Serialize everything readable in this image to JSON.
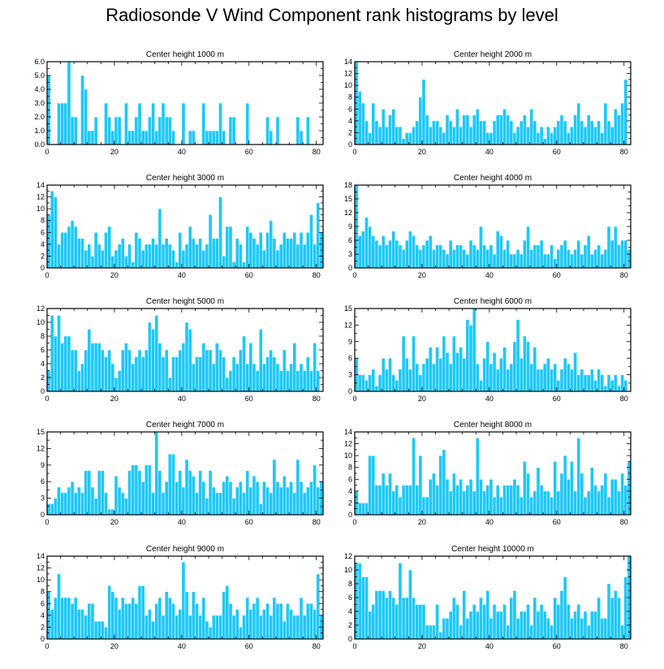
{
  "title": "Radiosonde V Wind Component rank histograms by level",
  "colors": {
    "bar": "#1ec8f7",
    "bar_stroke": "#ffffff",
    "axis": "#000000"
  },
  "chart_data": [
    {
      "type": "bar",
      "title": "Center height 1000 m",
      "xlabel": "",
      "ylabel": "",
      "xlim": [
        0,
        82
      ],
      "ylim": [
        0,
        6
      ],
      "xticks": [
        0,
        20,
        40,
        60,
        80
      ],
      "yticks": [
        0,
        1,
        2,
        3,
        4,
        5,
        6
      ],
      "ytick_labels": [
        "0.0",
        "1.0",
        "2.0",
        "3.0",
        "4.0",
        "5.0",
        "6.0"
      ],
      "values": [
        5,
        0,
        0,
        3,
        3,
        3,
        6,
        2,
        2,
        0,
        5,
        4,
        1,
        1,
        2,
        0,
        0,
        3,
        2,
        1,
        2,
        2,
        0,
        3,
        1,
        1,
        2,
        3,
        1,
        1,
        2,
        3,
        1,
        2,
        3,
        2,
        2,
        1,
        0,
        0,
        3,
        0,
        1,
        1,
        0,
        0,
        3,
        1,
        1,
        1,
        1,
        3,
        1,
        0,
        2,
        2,
        0,
        0,
        0,
        3,
        0,
        0,
        0,
        0,
        0,
        2,
        1,
        0,
        2,
        0,
        0,
        0,
        0,
        0,
        2,
        1,
        0,
        2,
        0,
        0,
        0,
        0
      ]
    },
    {
      "type": "bar",
      "title": "Center height 2000 m",
      "xlabel": "",
      "ylabel": "",
      "xlim": [
        0,
        82
      ],
      "ylim": [
        0,
        14
      ],
      "xticks": [
        0,
        20,
        40,
        60,
        80
      ],
      "yticks": [
        0,
        2,
        4,
        6,
        8,
        10,
        12,
        14
      ],
      "ytick_labels": [
        "0",
        "2",
        "4",
        "6",
        "8",
        "10",
        "12",
        "14"
      ],
      "values": [
        14,
        9,
        7,
        4,
        2,
        7,
        4,
        3,
        6,
        3,
        5,
        6,
        3,
        3,
        1,
        2,
        2,
        3,
        4,
        8,
        11,
        5,
        3,
        4,
        4,
        3,
        2,
        5,
        4,
        3,
        6,
        3,
        5,
        5,
        3,
        5,
        6,
        4,
        4,
        2,
        2,
        4,
        5,
        5,
        6,
        5,
        4,
        2,
        3,
        4,
        5,
        3,
        6,
        4,
        2,
        3,
        1,
        3,
        2,
        3,
        4,
        5,
        4,
        2,
        3,
        5,
        7,
        4,
        3,
        5,
        4,
        3,
        4,
        2,
        7,
        4,
        3,
        6,
        5,
        7,
        11
      ]
    },
    {
      "type": "bar",
      "title": "Center height 3000 m",
      "xlabel": "",
      "ylabel": "",
      "xlim": [
        0,
        82
      ],
      "ylim": [
        0,
        14
      ],
      "xticks": [
        0,
        20,
        40,
        60,
        80
      ],
      "yticks": [
        0,
        2,
        4,
        6,
        8,
        10,
        12,
        14
      ],
      "ytick_labels": [
        "0",
        "2",
        "4",
        "6",
        "8",
        "10",
        "12",
        "14"
      ],
      "values": [
        9,
        13,
        12,
        4,
        6,
        6,
        7,
        8,
        7,
        5,
        5,
        3,
        4,
        2,
        6,
        4,
        3,
        6,
        7,
        2,
        3,
        4,
        5,
        2,
        4,
        1,
        6,
        5,
        3,
        4,
        4,
        5,
        4,
        10,
        4,
        5,
        4,
        3,
        1,
        6,
        3,
        4,
        7,
        5,
        4,
        5,
        3,
        4,
        9,
        5,
        5,
        12,
        2,
        7,
        7,
        1,
        5,
        4,
        1,
        7,
        6,
        5,
        4,
        6,
        3,
        6,
        8,
        5,
        3,
        4,
        6,
        5,
        5,
        6,
        4,
        6,
        4,
        6,
        9,
        4,
        11,
        6
      ]
    },
    {
      "type": "bar",
      "title": "Center height 4000 m",
      "xlabel": "",
      "ylabel": "",
      "xlim": [
        0,
        82
      ],
      "ylim": [
        0,
        18
      ],
      "xticks": [
        0,
        20,
        40,
        60,
        80
      ],
      "yticks": [
        0,
        3,
        6,
        9,
        12,
        15,
        18
      ],
      "ytick_labels": [
        "0",
        "3",
        "6",
        "9",
        "12",
        "15",
        "18"
      ],
      "values": [
        18,
        7,
        8,
        11,
        9,
        7,
        6,
        5,
        7,
        5,
        6,
        8,
        6,
        5,
        4,
        6,
        8,
        7,
        5,
        4,
        5,
        6,
        7,
        4,
        5,
        5,
        4,
        3,
        6,
        4,
        5,
        5,
        4,
        3,
        6,
        5,
        4,
        9,
        5,
        4,
        5,
        3,
        8,
        7,
        4,
        6,
        3,
        3,
        4,
        3,
        6,
        9,
        4,
        5,
        5,
        6,
        3,
        3,
        5,
        2,
        4,
        5,
        6,
        4,
        3,
        4,
        6,
        3,
        5,
        7,
        3,
        4,
        5,
        3,
        4,
        9,
        6,
        9,
        5,
        6,
        6,
        4
      ]
    },
    {
      "type": "bar",
      "title": "Center height 5000 m",
      "xlabel": "",
      "ylabel": "",
      "xlim": [
        0,
        82
      ],
      "ylim": [
        0,
        12
      ],
      "xticks": [
        0,
        20,
        40,
        60,
        80
      ],
      "yticks": [
        0,
        2,
        4,
        6,
        8,
        10,
        12
      ],
      "ytick_labels": [
        "0",
        "2",
        "4",
        "6",
        "8",
        "10",
        "12"
      ],
      "values": [
        3,
        11,
        8,
        11,
        7,
        8,
        8,
        6,
        6,
        3,
        4,
        6,
        9,
        7,
        7,
        7,
        6,
        5,
        6,
        4,
        2,
        3,
        6,
        7,
        6,
        4,
        5,
        6,
        5,
        6,
        10,
        9,
        11,
        7,
        5,
        6,
        2,
        5,
        5,
        6,
        7,
        10,
        9,
        4,
        5,
        5,
        7,
        6,
        6,
        4,
        7,
        6,
        5,
        2,
        3,
        5,
        4,
        6,
        8,
        4,
        7,
        4,
        3,
        9,
        4,
        5,
        6,
        5,
        4,
        3,
        6,
        3,
        4,
        7,
        3,
        4,
        3,
        5,
        3,
        7,
        3
      ]
    },
    {
      "type": "bar",
      "title": "Center height 6000 m",
      "xlabel": "",
      "ylabel": "",
      "xlim": [
        0,
        82
      ],
      "ylim": [
        0,
        15
      ],
      "xticks": [
        0,
        20,
        40,
        60,
        80
      ],
      "yticks": [
        0,
        3,
        6,
        9,
        12,
        15
      ],
      "ytick_labels": [
        "0",
        "3",
        "6",
        "9",
        "12",
        "15"
      ],
      "values": [
        6,
        3,
        3,
        2,
        3,
        4,
        1,
        3,
        6,
        4,
        6,
        3,
        2,
        4,
        10,
        6,
        4,
        10,
        5,
        3,
        5,
        6,
        8,
        5,
        8,
        6,
        10,
        7,
        5,
        10,
        7,
        8,
        6,
        13,
        12,
        15,
        5,
        2,
        6,
        9,
        5,
        7,
        4,
        6,
        8,
        4,
        5,
        9,
        13,
        6,
        10,
        9,
        5,
        8,
        4,
        4,
        5,
        6,
        4,
        5,
        2,
        4,
        6,
        5,
        4,
        7,
        3,
        4,
        3,
        3,
        4,
        2,
        4,
        3,
        1,
        3,
        2,
        3,
        1,
        3,
        2
      ]
    },
    {
      "type": "bar",
      "title": "Center height 7000 m",
      "xlabel": "",
      "ylabel": "",
      "xlim": [
        0,
        82
      ],
      "ylim": [
        0,
        15
      ],
      "xticks": [
        0,
        20,
        40,
        60,
        80
      ],
      "yticks": [
        0,
        3,
        6,
        9,
        12,
        15
      ],
      "ytick_labels": [
        "0",
        "3",
        "6",
        "9",
        "12",
        "15"
      ],
      "values": [
        2,
        2,
        3,
        5,
        4,
        4,
        5,
        6,
        4,
        5,
        4,
        8,
        8,
        5,
        3,
        8,
        8,
        4,
        1,
        1,
        7,
        5,
        4,
        3,
        8,
        9,
        9,
        8,
        6,
        9,
        9,
        4,
        15,
        8,
        4,
        6,
        11,
        11,
        6,
        8,
        5,
        10,
        8,
        7,
        4,
        8,
        6,
        3,
        8,
        5,
        4,
        4,
        6,
        7,
        6,
        3,
        5,
        6,
        4,
        8,
        5,
        7,
        6,
        2,
        6,
        5,
        4,
        10,
        6,
        5,
        7,
        5,
        6,
        4,
        10,
        6,
        4,
        5,
        6,
        9,
        5,
        6
      ]
    },
    {
      "type": "bar",
      "title": "Center height 8000 m",
      "xlabel": "",
      "ylabel": "",
      "xlim": [
        0,
        82
      ],
      "ylim": [
        0,
        14
      ],
      "xticks": [
        0,
        20,
        40,
        60,
        80
      ],
      "yticks": [
        0,
        2,
        4,
        6,
        8,
        10,
        12,
        14
      ],
      "ytick_labels": [
        "0",
        "2",
        "4",
        "6",
        "8",
        "10",
        "12",
        "14"
      ],
      "values": [
        4,
        2,
        2,
        2,
        10,
        10,
        5,
        5,
        7,
        5,
        7,
        4,
        5,
        3,
        5,
        5,
        5,
        13,
        5,
        10,
        3,
        3,
        6,
        7,
        5,
        10,
        11,
        6,
        4,
        7,
        5,
        6,
        4,
        5,
        6,
        4,
        13,
        6,
        4,
        5,
        6,
        3,
        5,
        3,
        5,
        5,
        5,
        6,
        5,
        3,
        9,
        7,
        3,
        4,
        8,
        5,
        4,
        4,
        3,
        9,
        4,
        7,
        10,
        6,
        9,
        4,
        13,
        7,
        3,
        4,
        8,
        5,
        4,
        5,
        7,
        3,
        6,
        6,
        4,
        7,
        5,
        9
      ]
    },
    {
      "type": "bar",
      "title": "Center height 9000 m",
      "xlabel": "",
      "ylabel": "",
      "xlim": [
        0,
        82
      ],
      "ylim": [
        0,
        14
      ],
      "xticks": [
        0,
        20,
        40,
        60,
        80
      ],
      "yticks": [
        0,
        2,
        4,
        6,
        8,
        10,
        12,
        14
      ],
      "ytick_labels": [
        "0",
        "2",
        "4",
        "6",
        "8",
        "10",
        "12",
        "14"
      ],
      "values": [
        8,
        5,
        7,
        11,
        7,
        7,
        7,
        6,
        7,
        5,
        5,
        4,
        6,
        6,
        3,
        3,
        3,
        2,
        9,
        8,
        7,
        5,
        7,
        6,
        6,
        7,
        6,
        9,
        9,
        4,
        5,
        3,
        6,
        7,
        4,
        8,
        7,
        6,
        4,
        5,
        13,
        8,
        4,
        8,
        6,
        4,
        7,
        3,
        2,
        4,
        4,
        4,
        8,
        9,
        6,
        4,
        5,
        2,
        4,
        7,
        5,
        6,
        7,
        4,
        5,
        6,
        4,
        7,
        6,
        6,
        3,
        6,
        5,
        4,
        4,
        7,
        4,
        6,
        6,
        5,
        11,
        4
      ]
    },
    {
      "type": "bar",
      "title": "Center height 10000 m",
      "xlabel": "",
      "ylabel": "",
      "xlim": [
        0,
        82
      ],
      "ylim": [
        0,
        12
      ],
      "xticks": [
        0,
        20,
        40,
        60,
        80
      ],
      "yticks": [
        0,
        2,
        4,
        6,
        8,
        10,
        12
      ],
      "ytick_labels": [
        "0",
        "2",
        "4",
        "6",
        "8",
        "10",
        "12"
      ],
      "values": [
        11,
        11,
        9,
        9,
        4,
        5,
        7,
        7,
        7,
        6,
        7,
        6,
        5,
        11,
        6,
        6,
        10,
        6,
        5,
        5,
        5,
        2,
        2,
        2,
        5,
        1,
        3,
        3,
        4,
        6,
        5,
        2,
        7,
        3,
        4,
        5,
        4,
        6,
        5,
        7,
        3,
        5,
        4,
        4,
        5,
        2,
        6,
        7,
        3,
        4,
        4,
        5,
        2,
        6,
        4,
        5,
        4,
        3,
        2,
        6,
        5,
        7,
        9,
        5,
        3,
        4,
        5,
        3,
        4,
        2,
        4,
        4,
        6,
        3,
        3,
        8,
        6,
        7,
        6,
        2,
        9,
        12
      ]
    }
  ]
}
